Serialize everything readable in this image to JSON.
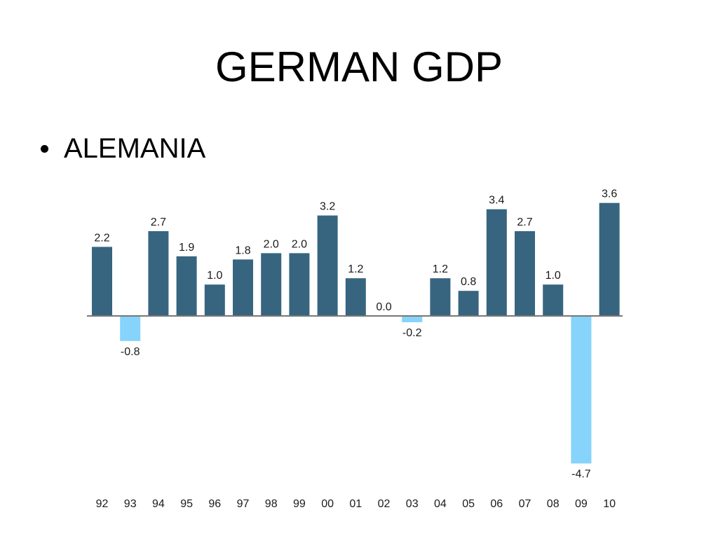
{
  "slide": {
    "title": "GERMAN GDP",
    "bullet": "ALEMANIA"
  },
  "colors": {
    "positive": "#376580",
    "negative": "#86d3fb",
    "axis": "#777777"
  },
  "chart_data": {
    "type": "bar",
    "title": "",
    "xlabel": "",
    "ylabel": "",
    "categories": [
      "92",
      "93",
      "94",
      "95",
      "96",
      "97",
      "98",
      "99",
      "00",
      "01",
      "02",
      "03",
      "04",
      "05",
      "06",
      "07",
      "08",
      "09",
      "10"
    ],
    "values": [
      2.2,
      -0.8,
      2.7,
      1.9,
      1.0,
      1.8,
      2.0,
      2.0,
      3.2,
      1.2,
      0.0,
      -0.2,
      1.2,
      0.8,
      3.4,
      2.7,
      1.0,
      -4.7,
      3.6
    ],
    "value_labels": [
      "2.2",
      "-0.8",
      "2.7",
      "1.9",
      "1.0",
      "1.8",
      "2.0",
      "2.0",
      "3.2",
      "1.2",
      "0.0",
      "-0.2",
      "1.2",
      "0.8",
      "3.4",
      "2.7",
      "1.0",
      "-4.7",
      "3.6"
    ],
    "ylim": [
      -4.7,
      3.6
    ],
    "grid": false,
    "legend": "none"
  }
}
